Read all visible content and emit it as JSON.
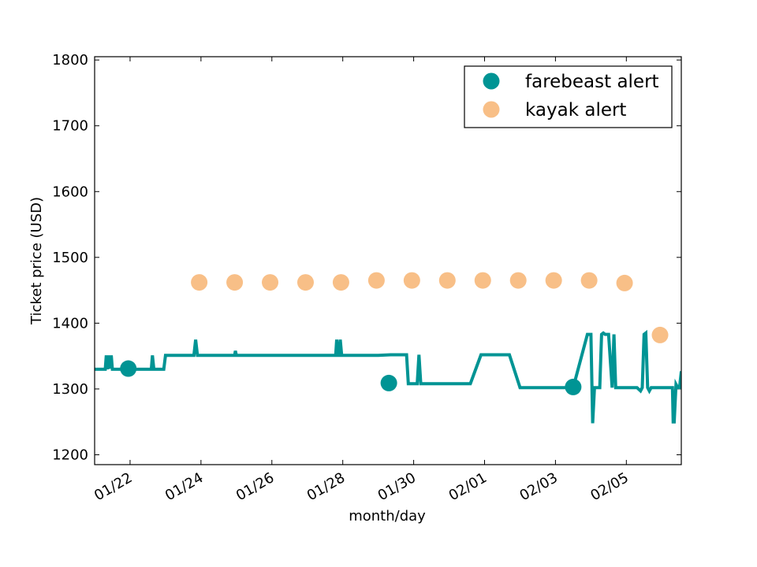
{
  "chart_data": {
    "type": "line",
    "xlabel": "month/day",
    "ylabel": "Ticket price (USD)",
    "ylim": [
      1185,
      1805
    ],
    "xlim_days": [
      21.0,
      37.55
    ],
    "yticks": [
      1200,
      1300,
      1400,
      1500,
      1600,
      1700,
      1800
    ],
    "xticks": [
      {
        "day": 22,
        "label": "01/22"
      },
      {
        "day": 24,
        "label": "01/24"
      },
      {
        "day": 26,
        "label": "01/26"
      },
      {
        "day": 28,
        "label": "01/28"
      },
      {
        "day": 30,
        "label": "01/30"
      },
      {
        "day": 32,
        "label": "02/01"
      },
      {
        "day": 34,
        "label": "02/03"
      },
      {
        "day": 36,
        "label": "02/05"
      }
    ],
    "legend": {
      "position": "upper-right",
      "entries": [
        "farebeast alert",
        "kayak alert"
      ]
    },
    "series": [
      {
        "name": "farebeast price",
        "kind": "line",
        "color": "#009494",
        "x": [
          21.0,
          21.3,
          21.33,
          21.37,
          21.4,
          21.43,
          21.47,
          21.5,
          21.52,
          21.7,
          21.95,
          22.0,
          22.6,
          22.63,
          22.67,
          22.7,
          22.95,
          23.0,
          23.05,
          23.75,
          23.8,
          23.85,
          23.9,
          24.0,
          24.5,
          24.95,
          24.97,
          25.0,
          26.0,
          27.0,
          27.8,
          27.83,
          27.87,
          27.9,
          27.93,
          27.97,
          28.0,
          28.5,
          29.0,
          29.35,
          29.6,
          29.75,
          29.8,
          29.85,
          29.9,
          30.1,
          30.15,
          30.2,
          30.25,
          30.5,
          31.0,
          31.3,
          31.6,
          31.9,
          32.0,
          32.3,
          32.7,
          33.0,
          33.4,
          33.6,
          33.9,
          34.0,
          34.5,
          34.9,
          35.0,
          35.05,
          35.1,
          35.15,
          35.2,
          35.25,
          35.3,
          35.35,
          35.4,
          35.5,
          35.6,
          35.65,
          35.7,
          35.75,
          35.8,
          35.9,
          36.0,
          36.3,
          36.4,
          36.45,
          36.5,
          36.55,
          36.6,
          36.65,
          36.7,
          36.75,
          36.8,
          36.85,
          36.9,
          37.0,
          37.2,
          37.3,
          37.32,
          37.35,
          37.4,
          37.45,
          37.5,
          37.55
        ],
        "y": [
          1330,
          1330,
          1351,
          1330,
          1351,
          1331,
          1351,
          1330,
          1330,
          1330,
          1330,
          1330,
          1330,
          1351,
          1330,
          1330,
          1330,
          1351,
          1351,
          1351,
          1351,
          1375,
          1351,
          1351,
          1351,
          1351,
          1358,
          1351,
          1351,
          1351,
          1351,
          1375,
          1351,
          1351,
          1375,
          1351,
          1351,
          1351,
          1351,
          1352,
          1352,
          1352,
          1352,
          1308,
          1308,
          1308,
          1352,
          1308,
          1308,
          1308,
          1308,
          1308,
          1308,
          1352,
          1352,
          1352,
          1352,
          1302,
          1302,
          1302,
          1302,
          1302,
          1302,
          1383,
          1383,
          1248,
          1302,
          1302,
          1302,
          1302,
          1383,
          1385,
          1383,
          1383,
          1302,
          1383,
          1302,
          1302,
          1302,
          1302,
          1302,
          1302,
          1297,
          1302,
          1383,
          1385,
          1302,
          1297,
          1302,
          1302,
          1302,
          1302,
          1302,
          1302,
          1302,
          1302,
          1250,
          1250,
          1307,
          1302,
          1302,
          1327
        ]
      },
      {
        "name": "farebeast alert",
        "kind": "scatter",
        "color": "#009494",
        "x": [
          21.95,
          29.3,
          34.5
        ],
        "y": [
          1331,
          1309,
          1303
        ]
      },
      {
        "name": "kayak alert",
        "kind": "scatter",
        "color": "#F8BF87",
        "x": [
          23.95,
          24.95,
          25.95,
          26.95,
          27.95,
          28.95,
          29.95,
          30.95,
          31.95,
          32.95,
          33.95,
          34.95,
          35.95,
          36.95
        ],
        "y": [
          1462,
          1462,
          1462,
          1462,
          1462,
          1465,
          1465,
          1465,
          1465,
          1465,
          1465,
          1465,
          1461,
          1382
        ]
      }
    ]
  }
}
